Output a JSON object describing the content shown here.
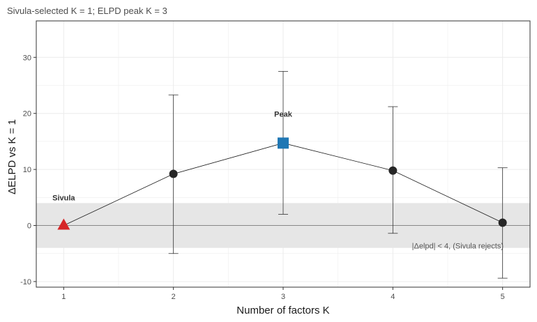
{
  "chart_data": {
    "type": "line",
    "title": "Sivula-selected K = 1; ELPD peak K = 3",
    "xlabel": "Number of factors K",
    "ylabel": "ΔELPD vs K = 1",
    "x": [
      1,
      2,
      3,
      4,
      5
    ],
    "x_ticks": [
      "1",
      "2",
      "3",
      "4",
      "5"
    ],
    "y_ticks": [
      "-10",
      "0",
      "10",
      "20",
      "30"
    ],
    "xlim": [
      0.75,
      5.25
    ],
    "ylim": [
      -11,
      36.5
    ],
    "grid": true,
    "series": [
      {
        "values": [
          0,
          9.2,
          14.7,
          9.8,
          0.5
        ],
        "lower": [
          0,
          -5.0,
          2.0,
          -1.4,
          -9.4
        ],
        "upper": [
          0,
          23.3,
          27.5,
          21.2,
          10.3
        ]
      }
    ],
    "band": {
      "ymin": -4,
      "ymax": 4
    },
    "reference_line": 0,
    "annotations": {
      "sivula": "Sivula",
      "peak": "Peak",
      "band_label": "|Δelpd| < 4,  (Sivula rejects)"
    },
    "colors": {
      "sivula_marker": "#d62728",
      "peak_marker": "#1f77b4",
      "point": "#262626",
      "band": "#e6e6e6",
      "grid": "#ebebeb"
    }
  }
}
